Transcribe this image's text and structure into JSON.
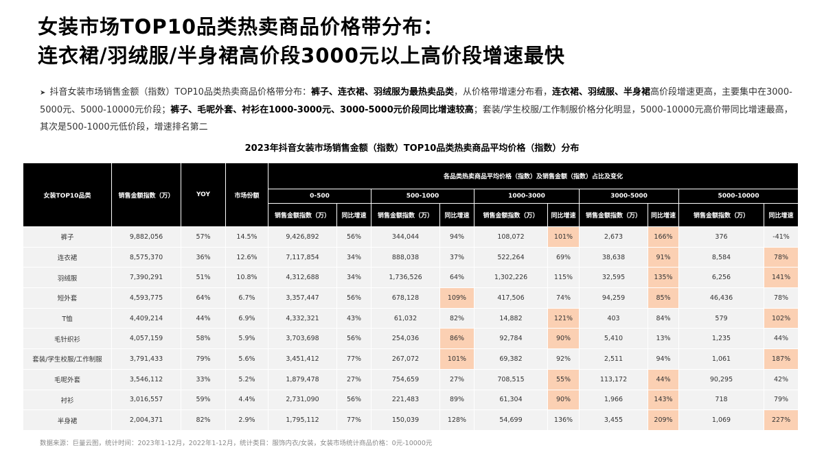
{
  "header": {
    "title_lines": [
      "女装市场TOP10品类热卖商品价格带分布：",
      "连衣裙/羽绒服/半身裙高价段3000元以上高价段增速最快"
    ]
  },
  "summary": [
    {
      "text": "抖音女装市场销售金额（指数）TOP10品类热卖商品价格带分布：",
      "bold": false
    },
    {
      "text": "裤子、连衣裙、羽绒服为最热卖品类",
      "bold": true
    },
    {
      "text": "，从价格带增速分布看，",
      "bold": false
    },
    {
      "text": "连衣裙、羽绒服、半身裙",
      "bold": true
    },
    {
      "text": "高价段增速更高，主要集中在3000-5000元、5000-10000元价段；",
      "bold": false
    },
    {
      "text": "裤子、毛呢外套、衬衫在1000-3000元、3000-5000元价段同比增速较高",
      "bold": true
    },
    {
      "text": "；套装/学生校服/工作制服价格分化明显，5000-10000元高价带同比增速最高，其次是500-1000元低价段，增速排名第二",
      "bold": false
    }
  ],
  "table": {
    "title": "2023年抖音女装市场销售金额（指数）TOP10品类热卖商品平均价格（指数）分布",
    "fixed_headers": [
      "女装TOP10品类",
      "销售金额指数（万）",
      "YOY",
      "市场份额"
    ],
    "group_header": "各品类热卖商品平均价格（指数）及销售金额（指数）占比及变化",
    "bands": [
      "0-500",
      "500-1000",
      "1000-3000",
      "3000-5000",
      "5000-10000"
    ],
    "sub_headers": [
      "销售金额指数（万）",
      "同比增速"
    ],
    "highlight_color": "#fbd0b3",
    "highlighted": [
      [
        0,
        9
      ],
      [
        0,
        11
      ],
      [
        1,
        11
      ],
      [
        1,
        13
      ],
      [
        2,
        11
      ],
      [
        2,
        13
      ],
      [
        3,
        7
      ],
      [
        3,
        11
      ],
      [
        4,
        9
      ],
      [
        4,
        13
      ],
      [
        5,
        7
      ],
      [
        5,
        9
      ],
      [
        6,
        7
      ],
      [
        6,
        13
      ],
      [
        7,
        9
      ],
      [
        7,
        11
      ],
      [
        8,
        9
      ],
      [
        8,
        11
      ],
      [
        9,
        11
      ],
      [
        9,
        13
      ]
    ],
    "rows": [
      [
        "裤子",
        "9,882,056",
        "57%",
        "14.5%",
        "9,426,892",
        "56%",
        "344,044",
        "94%",
        "108,072",
        "101%",
        "2,673",
        "166%",
        "376",
        "-41%"
      ],
      [
        "连衣裙",
        "8,575,370",
        "36%",
        "12.6%",
        "7,117,854",
        "34%",
        "888,038",
        "37%",
        "522,264",
        "69%",
        "38,638",
        "91%",
        "8,584",
        "78%"
      ],
      [
        "羽绒服",
        "7,390,291",
        "51%",
        "10.8%",
        "4,312,688",
        "34%",
        "1,736,526",
        "64%",
        "1,302,226",
        "115%",
        "32,595",
        "135%",
        "6,256",
        "141%"
      ],
      [
        "短外套",
        "4,593,775",
        "64%",
        "6.7%",
        "3,357,447",
        "56%",
        "678,128",
        "109%",
        "417,506",
        "74%",
        "94,259",
        "85%",
        "46,436",
        "78%"
      ],
      [
        "T恤",
        "4,409,214",
        "44%",
        "6.9%",
        "4,332,321",
        "43%",
        "61,032",
        "82%",
        "14,882",
        "121%",
        "403",
        "84%",
        "579",
        "102%"
      ],
      [
        "毛针织衫",
        "4,057,159",
        "58%",
        "5.9%",
        "3,703,698",
        "56%",
        "254,036",
        "86%",
        "92,784",
        "90%",
        "5,410",
        "13%",
        "1,235",
        "44%"
      ],
      [
        "套装/学生校服/工作制服",
        "3,791,433",
        "79%",
        "5.6%",
        "3,451,412",
        "77%",
        "267,072",
        "101%",
        "69,382",
        "92%",
        "2,511",
        "94%",
        "1,061",
        "187%"
      ],
      [
        "毛呢外套",
        "3,546,112",
        "33%",
        "5.2%",
        "1,879,478",
        "27%",
        "754,659",
        "27%",
        "708,515",
        "55%",
        "113,172",
        "44%",
        "90,295",
        "42%"
      ],
      [
        "衬衫",
        "3,016,557",
        "59%",
        "4.4%",
        "2,731,090",
        "56%",
        "221,483",
        "89%",
        "61,304",
        "90%",
        "1,966",
        "143%",
        "718",
        "79%"
      ],
      [
        "半身裙",
        "2,004,371",
        "82%",
        "2.9%",
        "1,795,112",
        "77%",
        "150,039",
        "128%",
        "54,699",
        "136%",
        "3,455",
        "209%",
        "1,069",
        "227%"
      ]
    ]
  },
  "footer": {
    "source": "数据来源：巨量云图，统计时间：2023年1-12月，2022年1-12月，统计类目：服饰内衣/女装，女装市场统计商品价格：0元-10000元"
  }
}
